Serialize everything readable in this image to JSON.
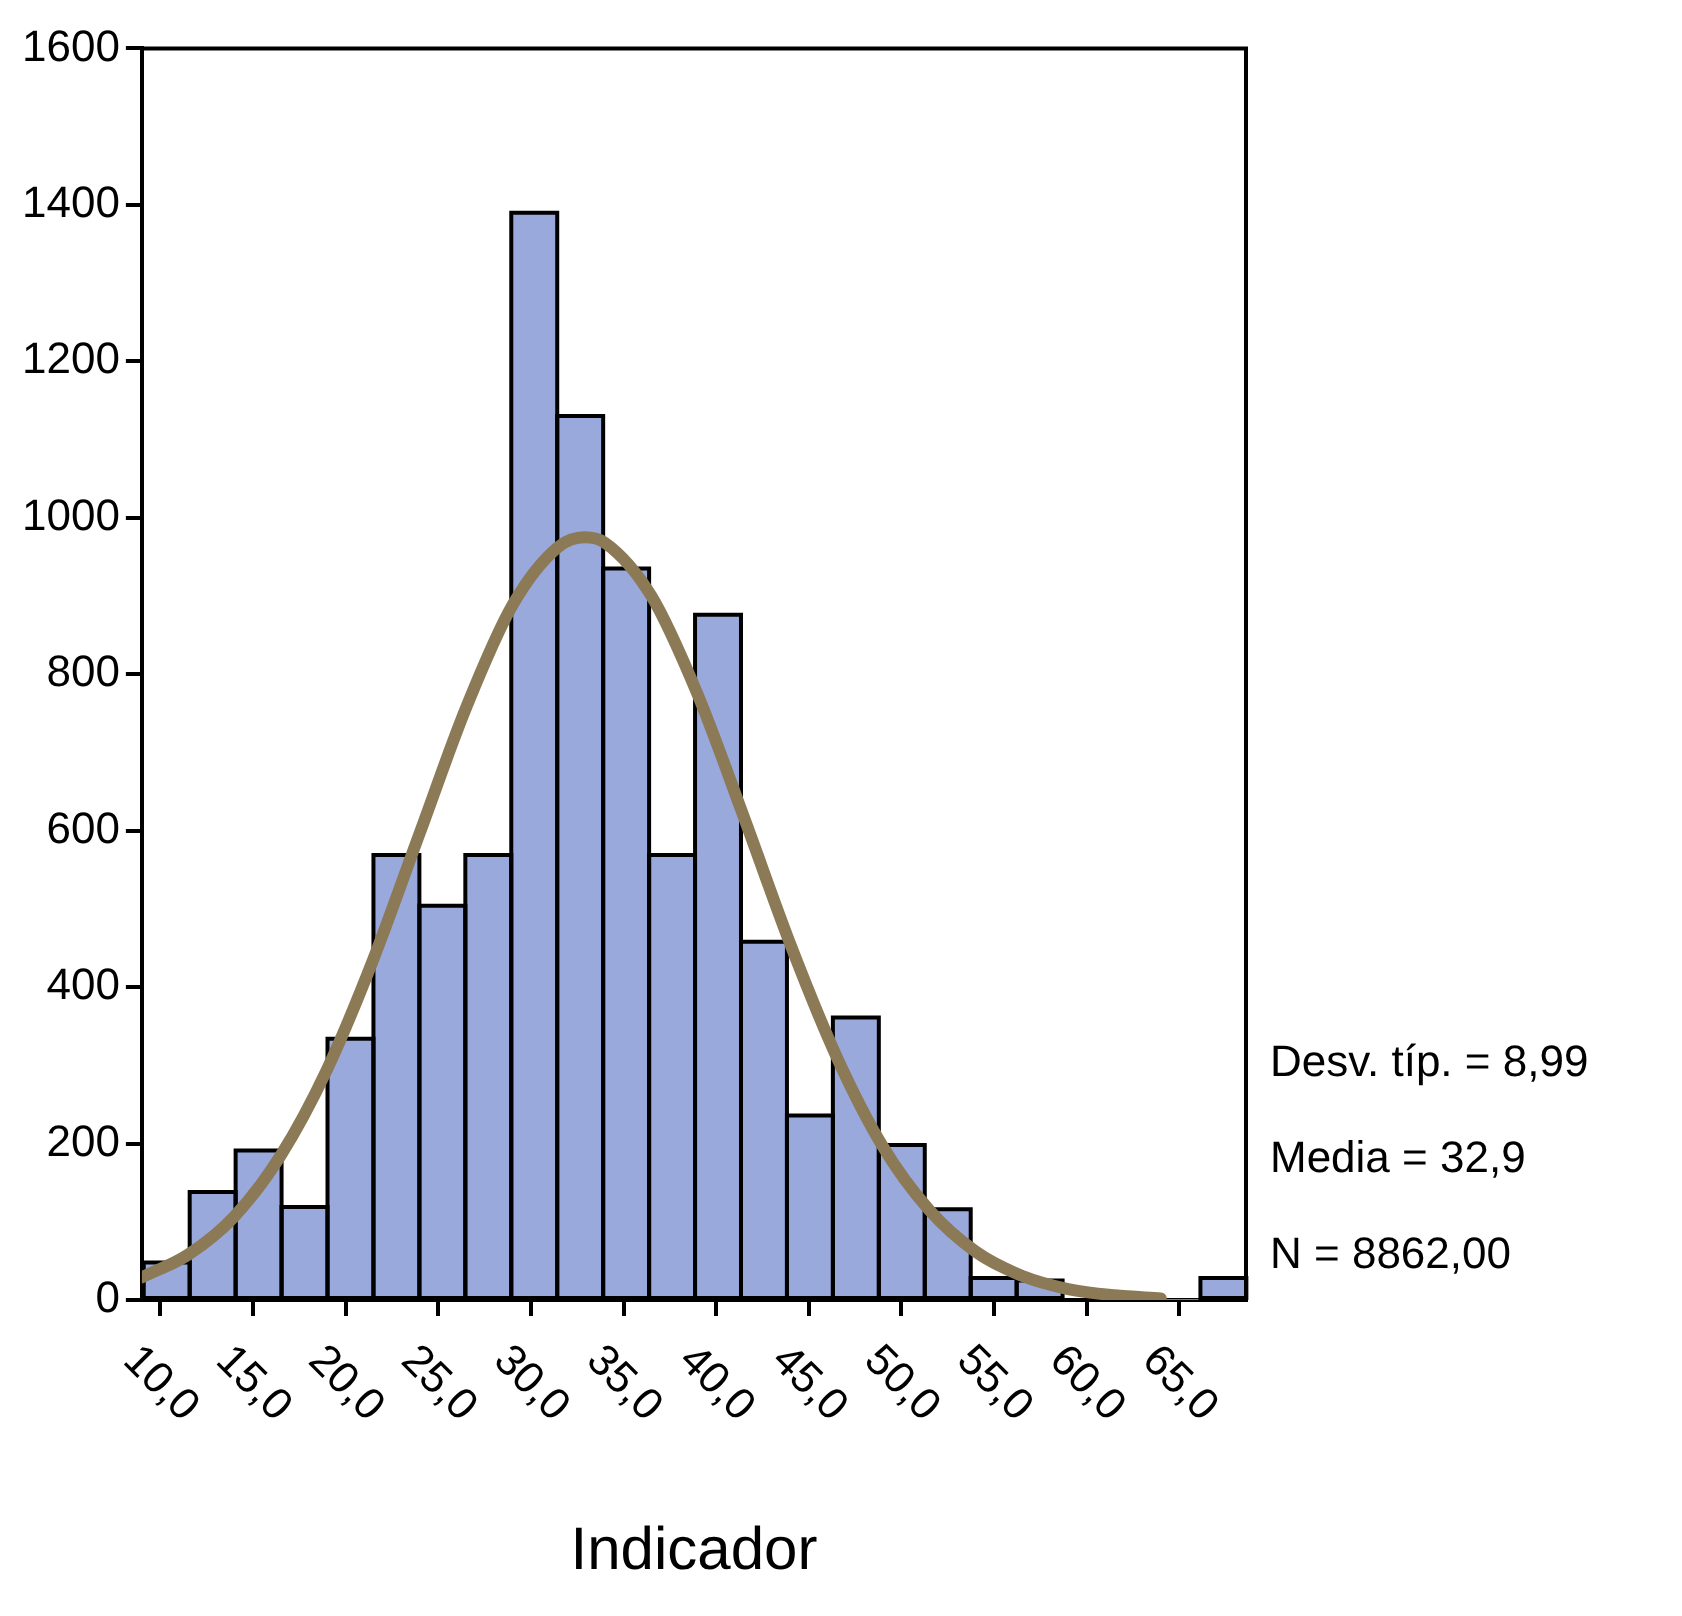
{
  "chart_data": {
    "type": "histogram",
    "xlabel": "Indicador",
    "bins": [
      9.1,
      11.58,
      14.06,
      16.54,
      19.02,
      21.5,
      23.98,
      26.46,
      28.94,
      31.42,
      33.9,
      36.38,
      38.86,
      41.34,
      43.82,
      46.3,
      48.78,
      51.26,
      53.74,
      56.22,
      58.7,
      61.18,
      63.66,
      66.14,
      68.62
    ],
    "values": [
      48,
      138,
      191,
      119,
      334,
      569,
      504,
      569,
      1390,
      1130,
      935,
      569,
      876,
      458,
      236,
      361,
      198,
      116,
      28,
      25,
      null,
      null,
      0,
      28
    ],
    "color": "#9aa9dc",
    "series": [
      {
        "type": "line",
        "color": "#8b7a55",
        "x": [
          9,
          11.5,
          14,
          16.5,
          19,
          21.5,
          24,
          26.5,
          29,
          31.5,
          32.9,
          34,
          36.5,
          39,
          41.5,
          44,
          46.5,
          49,
          51.5,
          54,
          56.5,
          59,
          61.5,
          64
        ],
        "values": [
          29,
          58,
          107,
          185,
          295,
          436,
          597,
          757,
          888,
          963,
          975,
          968,
          900,
          774,
          617,
          455,
          311,
          196,
          115,
          62,
          31,
          14,
          6,
          2
        ]
      }
    ],
    "xlim": [
      9,
      68.6
    ],
    "ylim": [
      0,
      1600
    ],
    "xticks": [
      {
        "value": 10,
        "label": "10,0"
      },
      {
        "value": 15,
        "label": "15,0"
      },
      {
        "value": 20,
        "label": "20,0"
      },
      {
        "value": 25,
        "label": "25,0"
      },
      {
        "value": 30,
        "label": "30,0"
      },
      {
        "value": 35,
        "label": "35,0"
      },
      {
        "value": 40,
        "label": "40,0"
      },
      {
        "value": 45,
        "label": "45,0"
      },
      {
        "value": 50,
        "label": "50,0"
      },
      {
        "value": 55,
        "label": "55,0"
      },
      {
        "value": 60,
        "label": "60,0"
      },
      {
        "value": 65,
        "label": "65,0"
      }
    ],
    "yticks": [
      0,
      200,
      400,
      600,
      800,
      1000,
      1200,
      1400,
      1600
    ],
    "grid": false,
    "legend": false,
    "marker": "none",
    "line_style": "solid",
    "annotations": [
      "Desv. típ. = 8,99",
      "Media = 32,9",
      "N = 8862,00"
    ]
  }
}
